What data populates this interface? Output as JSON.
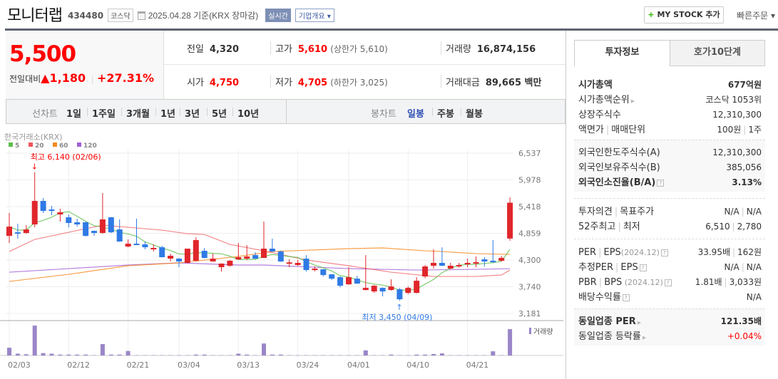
{
  "header": {
    "title": "모니터랩",
    "code": "434480",
    "market": "코스닥",
    "date": "2025.04.28 기준(KRX 장마감)",
    "realtime_badge": "실시간",
    "company_info": "기업개요 ▾",
    "mystock_plus": "+",
    "mystock_label": "MY STOCK 추가",
    "quick_order": "빠른주문 ▾"
  },
  "quote": {
    "price": "5,500",
    "change_label": "전일대비",
    "change_arrow": "▲",
    "change": "1,180",
    "change_pct": "+27.31%",
    "prev_label": "전일",
    "prev": "4,320",
    "high_label": "고가",
    "high": "5,610",
    "upper_limit": "(상한가 5,610)",
    "volume_label": "거래량",
    "volume": "16,874,156",
    "open_label": "시가",
    "open": "4,750",
    "low_label": "저가",
    "low": "4,705",
    "lower_limit": "(하한가 3,025)",
    "amount_label": "거래대금",
    "amount": "89,665 백만"
  },
  "periods": {
    "line_label": "선차트",
    "line": [
      "1일",
      "1주일",
      "3개월",
      "1년",
      "3년",
      "5년",
      "10년"
    ],
    "candle_label": "봉차트",
    "candle": [
      "일봉",
      "주봉",
      "월봉"
    ],
    "active": "일봉",
    "accent": "#2d4fb3"
  },
  "tabs": [
    "투자정보",
    "호가10단계"
  ],
  "invest": {
    "g1": [
      {
        "k": "시가총액",
        "v": "677억원",
        "bold": true
      },
      {
        "k": "시가총액순위",
        "v": "코스닥 1053위",
        "arrow": true
      },
      {
        "k": "상장주식수",
        "v": "12,310,300"
      },
      {
        "k": "액면가",
        "k2": "매매단위",
        "v": "100원",
        "v2": "1주"
      }
    ],
    "g2": [
      {
        "k": "외국인한도주식수(A)",
        "v": "12,310,300"
      },
      {
        "k": "외국인보유주식수(B)",
        "v": "385,056"
      },
      {
        "k": "외국인소진율(B/A)",
        "v": "3.13%",
        "bold": true,
        "help": true
      }
    ],
    "g3": [
      {
        "k": "투자의견",
        "k2": "목표주가",
        "v": "N/A",
        "v2": "N/A"
      },
      {
        "k": "52주최고",
        "k2": "최저",
        "v": "6,510",
        "v2": "2,780"
      }
    ],
    "g4": [
      {
        "k": "PER",
        "k2": "EPS",
        "d": "(2024.12)",
        "v": "33.95배",
        "v2": "162원",
        "help": true
      },
      {
        "k": "추정PER",
        "k2": "EPS",
        "v": "N/A",
        "v2": "N/A",
        "help": true
      },
      {
        "k": "PBR",
        "k2": "BPS",
        "d": " (2024.12)",
        "v": "1.81배",
        "v2": "3,033원",
        "help": true
      },
      {
        "k": "배당수익률",
        "v": "N/A",
        "help": true
      }
    ],
    "g5": [
      {
        "k": "동일업종 PER",
        "v": "121.35배",
        "bold": true,
        "arrow": true
      },
      {
        "k": "동일업종 등락률",
        "v": "+0.04%",
        "arrow": true,
        "red": true
      }
    ]
  },
  "help_icon": "?",
  "chart_data": {
    "type": "candlestick",
    "source": "한국거래소(KRX)",
    "legend": [
      {
        "name": "5",
        "color": "#5cbf4a"
      },
      {
        "name": "20",
        "color": "#f0555a"
      },
      {
        "name": "60",
        "color": "#f7881f"
      },
      {
        "name": "120",
        "color": "#a25fd6"
      }
    ],
    "y_ticks": [
      "6,537",
      "5,978",
      "5,418",
      "4,859",
      "4,300",
      "3,740",
      "3,181"
    ],
    "ylim": [
      3181,
      6537
    ],
    "x_ticks": [
      "02/03",
      "02/12",
      "02/21",
      "03/04",
      "03/13",
      "03/24",
      "04/01",
      "04/10",
      "04/21"
    ],
    "volume_label": "거래량",
    "high_note": "최고 6,140 (02/06)",
    "low_note": "최저 3,450 (04/09)",
    "up_color": "#e0262b",
    "down_color": "#2f7ae5",
    "dates": [
      "02/03",
      "02/04",
      "02/05",
      "02/06",
      "02/07",
      "02/10",
      "02/11",
      "02/12",
      "02/13",
      "02/14",
      "02/17",
      "02/18",
      "02/19",
      "02/20",
      "02/21",
      "02/24",
      "02/25",
      "02/26",
      "02/27",
      "02/28",
      "03/04",
      "03/05",
      "03/06",
      "03/07",
      "03/10",
      "03/11",
      "03/12",
      "03/13",
      "03/14",
      "03/17",
      "03/18",
      "03/19",
      "03/20",
      "03/21",
      "03/24",
      "03/25",
      "03/26",
      "03/27",
      "03/28",
      "03/31",
      "04/01",
      "04/02",
      "04/03",
      "04/04",
      "04/07",
      "04/08",
      "04/09",
      "04/10",
      "04/11",
      "04/14",
      "04/15",
      "04/16",
      "04/17",
      "04/18",
      "04/21",
      "04/22",
      "04/23",
      "04/24",
      "04/25",
      "04/28"
    ],
    "ohlc": [
      [
        4805,
        5284,
        4657,
        4999
      ],
      [
        4880,
        5060,
        4746,
        4850
      ],
      [
        4866,
        5030,
        4850,
        4940
      ],
      [
        5045,
        6140,
        4985,
        5537
      ],
      [
        5537,
        5597,
        5284,
        5328
      ],
      [
        5358,
        5433,
        5239,
        5328
      ],
      [
        5254,
        5373,
        5105,
        5299
      ],
      [
        5194,
        5254,
        4985,
        5075
      ],
      [
        5090,
        5164,
        4999,
        5045
      ],
      [
        5090,
        5100,
        4790,
        4805
      ],
      [
        4910,
        4920,
        4805,
        4866
      ],
      [
        4866,
        5701,
        4850,
        5150
      ],
      [
        5194,
        5200,
        4866,
        4880
      ],
      [
        4940,
        5150,
        4680,
        4687
      ],
      [
        4582,
        4731,
        4567,
        4642
      ],
      [
        4642,
        5164,
        4620,
        4627
      ],
      [
        4627,
        4687,
        4523,
        4567
      ],
      [
        4523,
        4627,
        4478,
        4553
      ],
      [
        4567,
        4597,
        4350,
        4359
      ],
      [
        4329,
        4433,
        4269,
        4389
      ],
      [
        4329,
        4340,
        4150,
        4269
      ],
      [
        4240,
        4538,
        4230,
        4538
      ],
      [
        4284,
        4776,
        4270,
        4717
      ],
      [
        4493,
        4553,
        4330,
        4344
      ],
      [
        4269,
        4433,
        4269,
        4329
      ],
      [
        4150,
        4230,
        4060,
        4225
      ],
      [
        4180,
        4300,
        4160,
        4284
      ],
      [
        4314,
        4657,
        4300,
        4359
      ],
      [
        4329,
        4612,
        4300,
        4374
      ],
      [
        4403,
        4463,
        4320,
        4329
      ],
      [
        4344,
        5105,
        4340,
        4538
      ],
      [
        4538,
        4746,
        4470,
        4478
      ],
      [
        4478,
        4500,
        4260,
        4269
      ],
      [
        4225,
        4314,
        4150,
        4250
      ],
      [
        4195,
        4300,
        4180,
        4240
      ],
      [
        4329,
        4403,
        4060,
        4090
      ],
      [
        4090,
        4165,
        4060,
        4120
      ],
      [
        4105,
        4110,
        3955,
        3986
      ],
      [
        4000,
        4010,
        3880,
        3910
      ],
      [
        3940,
        3960,
        3730,
        3761
      ],
      [
        3791,
        4150,
        3780,
        3940
      ],
      [
        3910,
        3970,
        3800,
        3806
      ],
      [
        3672,
        4403,
        3665,
        3717
      ],
      [
        3642,
        3780,
        3610,
        3761
      ],
      [
        3717,
        3725,
        3540,
        3642
      ],
      [
        3672,
        3896,
        3660,
        3746
      ],
      [
        3687,
        3717,
        3450,
        3478
      ],
      [
        3612,
        3746,
        3583,
        3717
      ],
      [
        3612,
        3940,
        3600,
        3866
      ],
      [
        3956,
        4195,
        3920,
        4165
      ],
      [
        4180,
        4523,
        4120,
        4240
      ],
      [
        4240,
        4567,
        4170,
        4180
      ],
      [
        4120,
        4240,
        4110,
        4180
      ],
      [
        4165,
        4240,
        4140,
        4195
      ],
      [
        4225,
        4329,
        4150,
        4240
      ],
      [
        4225,
        4374,
        4150,
        4254
      ],
      [
        4314,
        4359,
        4165,
        4269
      ],
      [
        4284,
        4717,
        4240,
        4254
      ],
      [
        4284,
        4389,
        4269,
        4344
      ],
      [
        4750,
        5610,
        4705,
        5500
      ]
    ],
    "volume_relative": [
      26,
      6,
      4,
      100,
      8,
      6,
      3,
      3,
      3,
      3,
      1,
      38,
      3,
      3,
      15,
      1,
      1,
      1,
      1,
      1,
      1,
      1,
      3,
      3,
      1,
      1,
      1,
      6,
      3,
      1,
      40,
      3,
      3,
      1,
      1,
      1,
      1,
      1,
      1,
      1,
      1,
      1,
      17,
      1,
      1,
      3,
      1,
      1,
      3,
      3,
      5,
      7,
      1,
      1,
      1,
      1,
      1,
      14,
      1,
      88
    ],
    "ma20": [
      [
        0,
        4478
      ],
      [
        3,
        4732
      ],
      [
        7,
        4880
      ],
      [
        11,
        5030
      ],
      [
        15,
        4970
      ],
      [
        18,
        4925
      ],
      [
        21,
        4851
      ],
      [
        23,
        4836
      ],
      [
        26,
        4627
      ],
      [
        30,
        4493
      ],
      [
        35,
        4300
      ],
      [
        40,
        4180
      ],
      [
        45,
        4045
      ],
      [
        50,
        3956
      ],
      [
        55,
        3956
      ],
      [
        58,
        3986
      ],
      [
        59,
        4090
      ]
    ],
    "ma60": [
      [
        0,
        3851
      ],
      [
        7,
        4000
      ],
      [
        14,
        4180
      ],
      [
        20,
        4240
      ],
      [
        27,
        4374
      ],
      [
        31,
        4478
      ],
      [
        40,
        4538
      ],
      [
        44,
        4553
      ],
      [
        49,
        4493
      ],
      [
        51,
        4478
      ],
      [
        55,
        4433
      ],
      [
        59,
        4418
      ]
    ],
    "ma120": [
      [
        0,
        4045
      ],
      [
        7,
        4120
      ],
      [
        14,
        4195
      ],
      [
        20,
        4240
      ],
      [
        27,
        4195
      ],
      [
        30,
        4195
      ],
      [
        40,
        4120
      ],
      [
        48,
        4090
      ],
      [
        55,
        4105
      ],
      [
        59,
        4120
      ]
    ]
  }
}
